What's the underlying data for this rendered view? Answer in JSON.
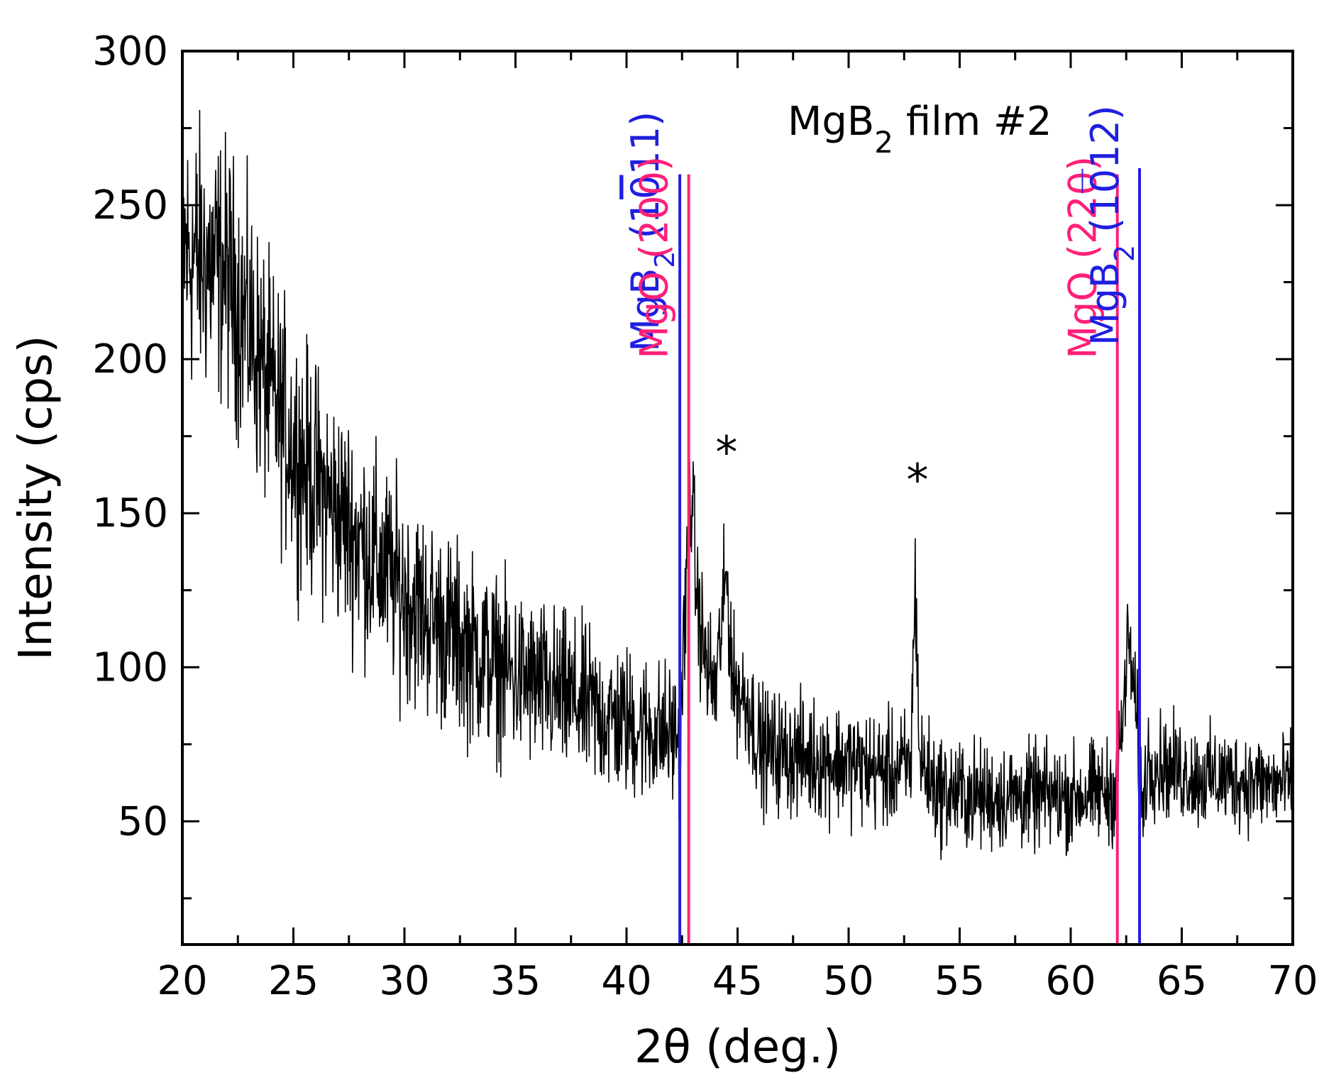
{
  "chart_data": {
    "type": "line",
    "title": "",
    "xlabel": "2θ (deg.)",
    "ylabel": "Intensity (cps)",
    "xlim": [
      20,
      70
    ],
    "ylim": [
      10,
      300
    ],
    "x_ticks": [
      20,
      25,
      30,
      35,
      40,
      45,
      50,
      55,
      60,
      65,
      70
    ],
    "y_ticks": [
      50,
      100,
      150,
      200,
      250,
      300
    ],
    "grid": false,
    "legend": "none",
    "sample_label": {
      "main": "MgB",
      "sub": "2",
      "rest": " film #2"
    },
    "line_color": "#000000",
    "series": [
      {
        "baseline": [
          [
            20,
            235
          ],
          [
            21,
            232
          ],
          [
            22,
            228
          ],
          [
            23,
            210
          ],
          [
            24,
            188
          ],
          [
            25,
            172
          ],
          [
            26,
            160
          ],
          [
            27,
            150
          ],
          [
            28,
            141
          ],
          [
            29,
            132
          ],
          [
            30,
            124
          ],
          [
            31,
            117
          ],
          [
            32,
            111
          ],
          [
            33,
            106
          ],
          [
            34,
            101
          ],
          [
            35,
            97
          ],
          [
            36,
            94
          ],
          [
            37,
            91
          ],
          [
            38,
            88
          ],
          [
            39,
            84
          ],
          [
            40,
            82
          ],
          [
            41,
            80
          ],
          [
            42,
            78
          ],
          [
            42.4,
            78
          ],
          [
            42.9,
            160
          ],
          [
            43.2,
            120
          ],
          [
            43.6,
            100
          ],
          [
            44,
            92
          ],
          [
            44.5,
            130
          ],
          [
            44.8,
            95
          ],
          [
            45.5,
            88
          ],
          [
            46,
            74
          ],
          [
            47,
            72
          ],
          [
            48,
            71
          ],
          [
            49,
            70
          ],
          [
            50,
            69
          ],
          [
            51,
            67
          ],
          [
            52,
            66
          ],
          [
            52.8,
            68
          ],
          [
            53,
            130
          ],
          [
            53.2,
            70
          ],
          [
            54,
            60
          ],
          [
            55,
            59
          ],
          [
            56,
            58
          ],
          [
            57,
            58
          ],
          [
            58,
            58
          ],
          [
            59,
            58
          ],
          [
            60,
            58
          ],
          [
            61,
            59
          ],
          [
            62,
            60
          ],
          [
            62.3,
            78
          ],
          [
            62.6,
            110
          ],
          [
            63,
            80
          ],
          [
            63.2,
            55
          ],
          [
            63.5,
            70
          ],
          [
            64,
            68
          ],
          [
            65,
            66
          ],
          [
            66,
            64
          ],
          [
            67,
            64
          ],
          [
            68,
            63
          ],
          [
            69,
            62
          ],
          [
            70,
            62
          ]
        ],
        "noise_band": [
          [
            20,
            40
          ],
          [
            25,
            35
          ],
          [
            30,
            30
          ],
          [
            35,
            25
          ],
          [
            40,
            22
          ],
          [
            45,
            18
          ],
          [
            50,
            17
          ],
          [
            55,
            16
          ],
          [
            60,
            15
          ],
          [
            65,
            15
          ],
          [
            70,
            14
          ]
        ],
        "step": 0.02
      }
    ],
    "reference_lines": [
      {
        "x": 42.4,
        "top": 260,
        "color": "#1f1fe0",
        "label": {
          "main": "MgB",
          "sub": "2",
          "rest": " (1011)",
          "overline_index": 3
        }
      },
      {
        "x": 42.8,
        "top": 260,
        "color": "#ff1f78",
        "label": {
          "main": "MgO (200)"
        }
      },
      {
        "x": 62.1,
        "top": 260,
        "color": "#ff1f78",
        "label": {
          "main": "MgO (220)"
        }
      },
      {
        "x": 63.1,
        "top": 262,
        "color": "#1f1fe0",
        "label": {
          "main": "MgB",
          "sub": "2",
          "rest": " (1012)",
          "overline_index": 3
        }
      }
    ],
    "annotations": [
      {
        "text": "*",
        "x": 44.5,
        "y": 163
      },
      {
        "text": "*",
        "x": 53.1,
        "y": 154
      }
    ]
  }
}
